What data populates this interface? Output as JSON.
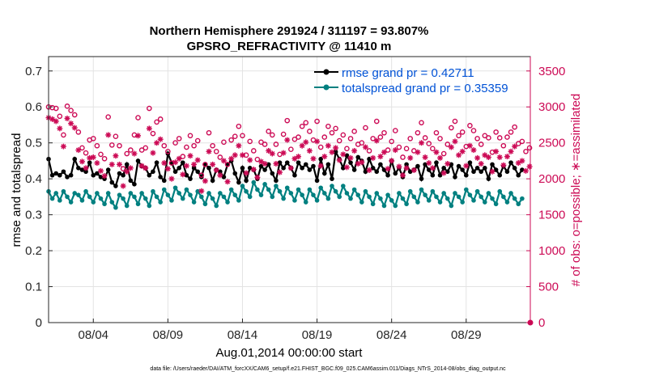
{
  "chart_data": {
    "type": "line",
    "title": "Northern Hemisphere 291924 / 311197 = 93.807%",
    "subtitle": "GPSRO_REFRACTIVITY @ 11410 m",
    "xlabel": "Aug.01,2014 00:00:00 start",
    "ylabel": "rmse and totalspread",
    "y2label": "# of obs: o=possible; ∗=assimilated",
    "xlim": [
      0,
      32.3
    ],
    "ylim": [
      0,
      0.74
    ],
    "y2lim": [
      0,
      3700
    ],
    "x_ticks": [
      {
        "x": 3,
        "label": "08/04"
      },
      {
        "x": 8,
        "label": "08/09"
      },
      {
        "x": 13,
        "label": "08/14"
      },
      {
        "x": 18,
        "label": "08/19"
      },
      {
        "x": 23,
        "label": "08/24"
      },
      {
        "x": 28,
        "label": "08/29"
      }
    ],
    "y_ticks": [
      {
        "v": 0,
        "label": "0"
      },
      {
        "v": 0.1,
        "label": "0.1"
      },
      {
        "v": 0.2,
        "label": "0.2"
      },
      {
        "v": 0.3,
        "label": "0.3"
      },
      {
        "v": 0.4,
        "label": "0.4"
      },
      {
        "v": 0.5,
        "label": "0.5"
      },
      {
        "v": 0.6,
        "label": "0.6"
      },
      {
        "v": 0.7,
        "label": "0.7"
      }
    ],
    "y2_ticks": [
      {
        "v": 0,
        "label": "0"
      },
      {
        "v": 500,
        "label": "500"
      },
      {
        "v": 1000,
        "label": "1000"
      },
      {
        "v": 1500,
        "label": "1500"
      },
      {
        "v": 2000,
        "label": "2000"
      },
      {
        "v": 2500,
        "label": "2500"
      },
      {
        "v": 3000,
        "label": "3000"
      },
      {
        "v": 3500,
        "label": "3500"
      }
    ],
    "grid": true,
    "legend": {
      "location": "top-right",
      "entries": [
        "rmse grand pr = 0.42711",
        "totalspread grand pr = 0.35359"
      ]
    },
    "series": [
      {
        "name": "rmse",
        "axis": "left",
        "color": "#000000",
        "x_start": 0,
        "x_step": 0.25,
        "values": [
          0.455,
          0.41,
          0.415,
          0.41,
          0.42,
          0.405,
          0.41,
          0.455,
          0.43,
          0.425,
          0.42,
          0.445,
          0.41,
          0.415,
          0.405,
          0.4,
          0.425,
          0.39,
          0.38,
          0.415,
          0.41,
          0.44,
          0.395,
          0.385,
          0.45,
          0.435,
          0.43,
          0.41,
          0.42,
          0.445,
          0.405,
          0.395,
          0.47,
          0.445,
          0.42,
          0.43,
          0.445,
          0.41,
          0.4,
          0.43,
          0.42,
          0.405,
          0.44,
          0.43,
          0.395,
          0.425,
          0.42,
          0.405,
          0.44,
          0.45,
          0.415,
          0.39,
          0.43,
          0.395,
          0.43,
          0.425,
          0.4,
          0.435,
          0.425,
          0.44,
          0.415,
          0.395,
          0.445,
          0.43,
          0.445,
          0.43,
          0.41,
          0.445,
          0.43,
          0.44,
          0.425,
          0.435,
          0.395,
          0.455,
          0.415,
          0.44,
          0.4,
          0.475,
          0.455,
          0.43,
          0.465,
          0.445,
          0.425,
          0.46,
          0.45,
          0.42,
          0.455,
          0.43,
          0.42,
          0.44,
          0.425,
          0.41,
          0.45,
          0.415,
          0.43,
          0.405,
          0.44,
          0.42,
          0.425,
          0.435,
          0.4,
          0.44,
          0.425,
          0.41,
          0.445,
          0.41,
          0.43,
          0.42,
          0.44,
          0.405,
          0.435,
          0.425,
          0.41,
          0.445,
          0.42,
          0.43,
          0.42,
          0.43,
          0.4,
          0.44,
          0.425,
          0.41,
          0.435,
          0.42,
          0.445,
          0.43,
          0.41,
          0.425
        ]
      },
      {
        "name": "totalspread",
        "axis": "left",
        "color": "#008080",
        "x_start": 0,
        "x_step": 0.25,
        "values": [
          0.365,
          0.345,
          0.36,
          0.34,
          0.365,
          0.35,
          0.335,
          0.36,
          0.355,
          0.34,
          0.365,
          0.35,
          0.335,
          0.36,
          0.345,
          0.33,
          0.36,
          0.335,
          0.32,
          0.355,
          0.345,
          0.325,
          0.36,
          0.35,
          0.33,
          0.36,
          0.345,
          0.325,
          0.365,
          0.35,
          0.335,
          0.37,
          0.355,
          0.34,
          0.375,
          0.36,
          0.345,
          0.37,
          0.355,
          0.335,
          0.365,
          0.35,
          0.33,
          0.36,
          0.345,
          0.325,
          0.36,
          0.35,
          0.335,
          0.37,
          0.355,
          0.34,
          0.38,
          0.365,
          0.35,
          0.39,
          0.37,
          0.355,
          0.385,
          0.37,
          0.35,
          0.38,
          0.365,
          0.345,
          0.375,
          0.36,
          0.34,
          0.37,
          0.355,
          0.335,
          0.37,
          0.355,
          0.34,
          0.375,
          0.36,
          0.345,
          0.38,
          0.365,
          0.35,
          0.38,
          0.36,
          0.345,
          0.37,
          0.355,
          0.335,
          0.365,
          0.35,
          0.33,
          0.36,
          0.345,
          0.325,
          0.355,
          0.34,
          0.325,
          0.36,
          0.345,
          0.33,
          0.365,
          0.35,
          0.335,
          0.37,
          0.355,
          0.34,
          0.365,
          0.35,
          0.335,
          0.36,
          0.345,
          0.325,
          0.36,
          0.35,
          0.335,
          0.37,
          0.355,
          0.34,
          0.365,
          0.35,
          0.335,
          0.36,
          0.345,
          0.33,
          0.365,
          0.35,
          0.335,
          0.36,
          0.345,
          0.33,
          0.345
        ]
      },
      {
        "name": "possible",
        "axis": "right",
        "marker": "o",
        "color": "#cc0a55",
        "x_start": 0,
        "x_step": 0.25,
        "values": [
          3000,
          2990,
          2980,
          2870,
          2610,
          3010,
          2950,
          2890,
          2650,
          2430,
          2360,
          2540,
          2560,
          2460,
          2340,
          2280,
          2860,
          2470,
          2590,
          2460,
          2140,
          2350,
          2400,
          2610,
          2850,
          2400,
          2430,
          2980,
          2630,
          2790,
          2830,
          2460,
          2380,
          2220,
          2500,
          2560,
          2310,
          2440,
          2600,
          2460,
          2530,
          2050,
          2200,
          2640,
          2460,
          2380,
          2300,
          2510,
          2200,
          2540,
          2590,
          2730,
          2600,
          2330,
          2520,
          2390,
          2270,
          2510,
          2480,
          2660,
          2610,
          2480,
          2340,
          2620,
          2810,
          2410,
          2550,
          2580,
          2730,
          2780,
          2660,
          2540,
          2800,
          2440,
          2580,
          2730,
          2640,
          2700,
          2530,
          2610,
          2420,
          2560,
          2660,
          2480,
          2500,
          2710,
          2390,
          2560,
          2800,
          2580,
          2640,
          2400,
          2520,
          2670,
          2440,
          2300,
          2420,
          2560,
          2390,
          2640,
          2780,
          2570,
          2490,
          2420,
          2640,
          2560,
          2350,
          2480,
          2710,
          2800,
          2600,
          2650,
          2450,
          2740,
          2670,
          2560,
          2480,
          2600,
          2570,
          2370,
          2650,
          2570,
          2460,
          2580,
          2650,
          2720,
          2490,
          2520,
          2380,
          2430
        ]
      },
      {
        "name": "assimilated",
        "axis": "right",
        "marker": "*",
        "color": "#cc0a55",
        "x_start": 0,
        "x_step": 0.25,
        "values": [
          2850,
          2830,
          2800,
          2700,
          2450,
          2840,
          2770,
          2710,
          2400,
          2240,
          2150,
          2290,
          2300,
          2220,
          2110,
          2040,
          2610,
          2200,
          2320,
          2200,
          1900,
          2100,
          2150,
          2350,
          2600,
          2180,
          2150,
          2700,
          2360,
          2500,
          2550,
          2220,
          2140,
          2000,
          2230,
          2280,
          2060,
          2180,
          2320,
          2200,
          2260,
          1830,
          1970,
          2380,
          2200,
          2120,
          2050,
          2250,
          1960,
          2280,
          2330,
          2460,
          2330,
          2080,
          2260,
          2130,
          2020,
          2240,
          2210,
          2390,
          2350,
          2210,
          2090,
          2360,
          2540,
          2150,
          2280,
          2310,
          2460,
          2510,
          2390,
          2280,
          2520,
          2180,
          2310,
          2460,
          2370,
          2430,
          2260,
          2340,
          2160,
          2290,
          2390,
          2210,
          2230,
          2440,
          2120,
          2290,
          2530,
          2310,
          2370,
          2140,
          2250,
          2400,
          2170,
          2050,
          2150,
          2290,
          2120,
          2370,
          2500,
          2300,
          2220,
          2150,
          2370,
          2290,
          2080,
          2210,
          2440,
          2520,
          2330,
          2380,
          2180,
          2460,
          2400,
          2290,
          2210,
          2330,
          2300,
          2100,
          2380,
          2300,
          2190,
          2310,
          2380,
          2450,
          2220,
          2250,
          2110,
          2170
        ]
      }
    ],
    "annotations": [
      "data file: /Users/raeder/DAI/ATM_forcXX/CAM6_setup/f.e21.FHIST_BGC.f09_025.CAM6assim.011/Diags_NTrS_2014-08/obs_diag_output.nc"
    ]
  },
  "colors": {
    "rmse": "#000000",
    "spread": "#008080",
    "obs": "#cc0a55",
    "legend_text": "#0052d6"
  }
}
